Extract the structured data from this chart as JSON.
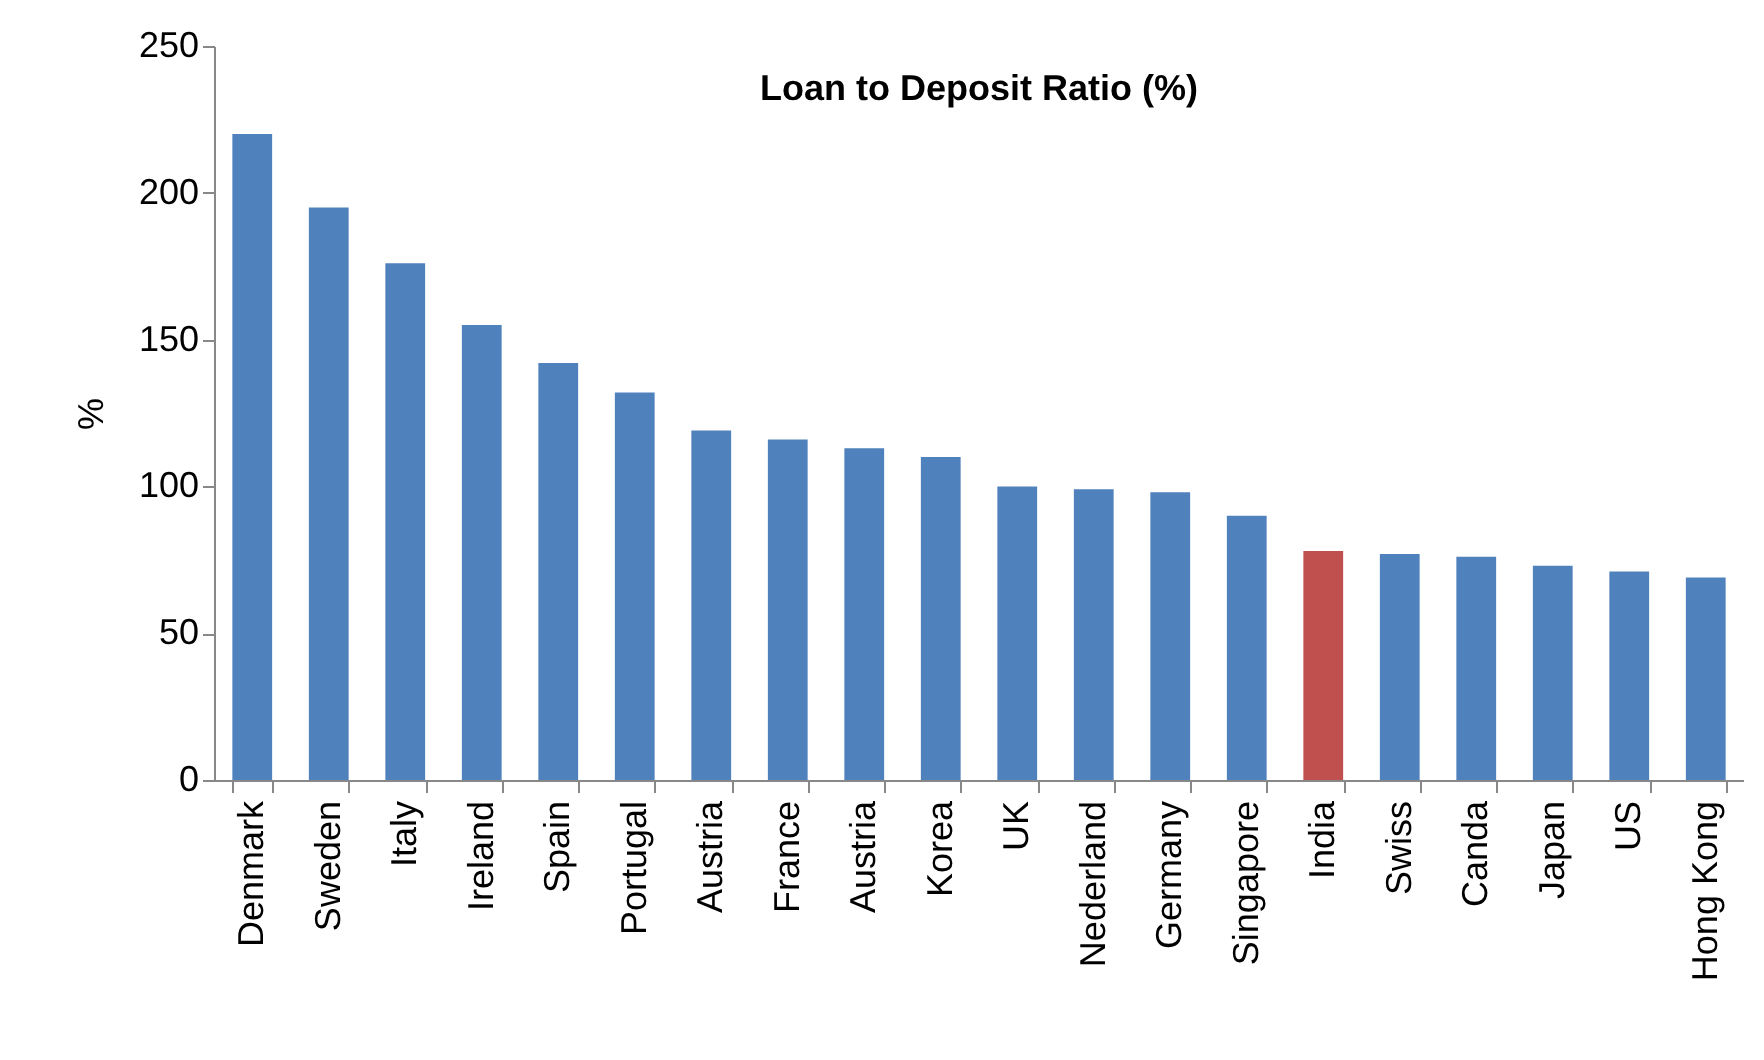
{
  "chart_data": {
    "type": "bar",
    "title": "Loan to Deposit Ratio (%)",
    "ylabel": "%",
    "categories": [
      "Denmark",
      "Sweden",
      "Italy",
      "Ireland",
      "Spain",
      "Portugal",
      "Austria",
      "France",
      "Austria",
      "Korea",
      "UK",
      "Nederland",
      "Germany",
      "Singapore",
      "India",
      "Swiss",
      "Canda",
      "Japan",
      "US",
      "Hong Kong"
    ],
    "values": [
      220,
      195,
      176,
      155,
      142,
      132,
      119,
      116,
      113,
      110,
      100,
      99,
      98,
      90,
      78,
      77,
      76,
      73,
      71,
      69
    ],
    "colors": [
      "#4f81bd",
      "#4f81bd",
      "#4f81bd",
      "#4f81bd",
      "#4f81bd",
      "#4f81bd",
      "#4f81bd",
      "#4f81bd",
      "#4f81bd",
      "#4f81bd",
      "#4f81bd",
      "#4f81bd",
      "#4f81bd",
      "#4f81bd",
      "#c0504d",
      "#4f81bd",
      "#4f81bd",
      "#4f81bd",
      "#4f81bd",
      "#4f81bd"
    ],
    "ylim": [
      0,
      250
    ],
    "yticks": [
      0,
      50,
      100,
      150,
      200,
      250
    ],
    "grid": false
  }
}
